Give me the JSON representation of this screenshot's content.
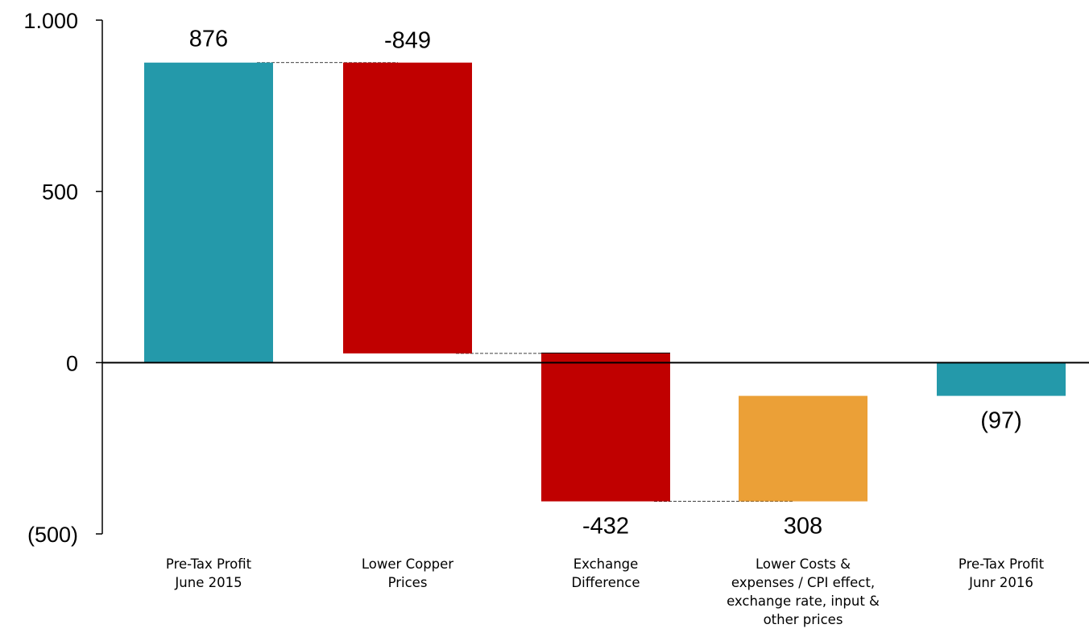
{
  "chart_data": {
    "type": "bar",
    "subtype": "waterfall",
    "categories": [
      "Pre-Tax Profit June 2015",
      "Lower Copper Prices",
      "Exchange Difference",
      "Lower Costs & expenses / CPI effect, exchange rate, input & other prices",
      "Pre-Tax Profit Junr 2016"
    ],
    "category_lines": [
      [
        "Pre-Tax Profit",
        "June 2015"
      ],
      [
        "Lower Copper",
        "Prices"
      ],
      [
        "Exchange",
        "Difference"
      ],
      [
        "Lower Costs &",
        "expenses / CPI effect,",
        "exchange rate, input &",
        "other prices"
      ],
      [
        "Pre-Tax Profit",
        "Junr 2016"
      ]
    ],
    "values": [
      876,
      -849,
      -432,
      308,
      -97
    ],
    "bar_roles": [
      "total",
      "delta",
      "delta",
      "delta",
      "total"
    ],
    "data_labels": [
      "876",
      "-849",
      "-432",
      "308",
      "(97)"
    ],
    "colors": [
      "#2499AA",
      "#C00000",
      "#C00000",
      "#EBA037",
      "#2499AA"
    ],
    "ylim": [
      -500,
      1000
    ],
    "yticks": [
      1000,
      500,
      0,
      -500
    ],
    "ytick_labels": [
      "1.000",
      "500",
      "0",
      "(500)"
    ],
    "grid": false,
    "legend": "none"
  }
}
